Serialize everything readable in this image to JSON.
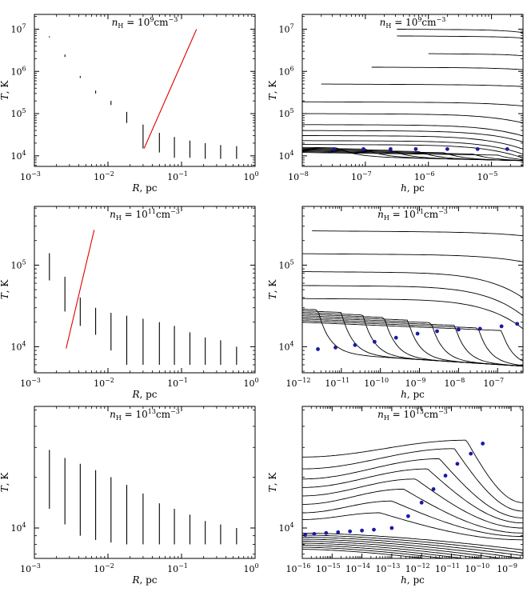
{
  "chart_data": [
    {
      "id": "p1",
      "type": "line",
      "title_main": "n",
      "title_sub": "H",
      "title_rest": " = 10",
      "title_exp": "9",
      "title_unit": "cm",
      "title_unit_exp": "−3",
      "ylabel_main": "T",
      "ylabel_rest": ", K",
      "xlabel_main": "R",
      "xlabel_rest": ", pc",
      "xlog": [
        -3,
        0
      ],
      "ylog": [
        3.75,
        7.35
      ],
      "xticks": [
        {
          "e": -3,
          "label": "10",
          "exp": "−3"
        },
        {
          "e": -2,
          "label": "10",
          "exp": "−2"
        },
        {
          "e": -1,
          "label": "10",
          "exp": "−1"
        },
        {
          "e": 0,
          "label": "10",
          "exp": "0"
        }
      ],
      "yticks": [
        {
          "e": 4,
          "label": "10",
          "exp": "4"
        },
        {
          "e": 5,
          "label": "10",
          "exp": "5"
        },
        {
          "e": 6,
          "label": "10",
          "exp": "6"
        },
        {
          "e": 7,
          "label": "10",
          "exp": "7"
        }
      ],
      "vbars": [
        [
          0.0016,
          6400000.0,
          6800000.0
        ],
        [
          0.0026,
          2200000.0,
          2500000.0
        ],
        [
          0.0042,
          700000.0,
          780000.0
        ],
        [
          0.0068,
          300000.0,
          350000.0
        ],
        [
          0.011,
          160000.0,
          200000.0
        ],
        [
          0.018,
          60000.0,
          110000.0
        ],
        [
          0.03,
          15000.0,
          55000.0
        ],
        [
          0.05,
          12000.0,
          35000.0
        ],
        [
          0.08,
          9000.0,
          28000.0
        ],
        [
          0.13,
          9000.0,
          23000.0
        ],
        [
          0.21,
          8500.0,
          20000.0
        ],
        [
          0.34,
          8500.0,
          18000.0
        ],
        [
          0.56,
          8500.0,
          17000.0
        ]
      ],
      "redline": [
        [
          0.031,
          15000.0
        ],
        [
          0.16,
          10000000.0
        ]
      ]
    },
    {
      "id": "p2",
      "type": "line",
      "title_main": "n",
      "title_sub": "H",
      "title_rest": " = 10",
      "title_exp": "9",
      "title_unit": "cm",
      "title_unit_exp": "−3",
      "ylabel_main": "T",
      "ylabel_rest": ", K",
      "xlabel_main": "h",
      "xlabel_rest": ", pc",
      "xlog": [
        -8,
        -4.5
      ],
      "ylog": [
        3.75,
        7.35
      ],
      "xticks": [
        {
          "e": -8,
          "label": "10",
          "exp": "−8"
        },
        {
          "e": -7,
          "label": "10",
          "exp": "−7"
        },
        {
          "e": -6,
          "label": "10",
          "exp": "−6"
        },
        {
          "e": -5,
          "label": "10",
          "exp": "−5"
        }
      ],
      "yticks": [
        {
          "e": 4,
          "label": "10",
          "exp": "4"
        },
        {
          "e": 5,
          "label": "10",
          "exp": "5"
        },
        {
          "e": 6,
          "label": "10",
          "exp": "6"
        },
        {
          "e": 7,
          "label": "10",
          "exp": "7"
        }
      ],
      "curves": [
        {
          "x0": -6.5,
          "y0": 7.0,
          "drop": 0.06
        },
        {
          "x0": -6.5,
          "y0": 6.84,
          "drop": 0.03
        },
        {
          "x0": -6.0,
          "y0": 6.42,
          "drop": 0.03
        },
        {
          "x0": -6.9,
          "y0": 6.1,
          "drop": 0.04
        },
        {
          "x0": -7.7,
          "y0": 5.7,
          "drop": 0.04
        },
        {
          "x0": -8.0,
          "y0": 5.28,
          "drop": 0.08
        },
        {
          "x0": -8.0,
          "y0": 5.0,
          "drop": 0.2
        },
        {
          "x0": -8.0,
          "y0": 4.74,
          "drop": 0.25
        },
        {
          "x0": -8.0,
          "y0": 4.6,
          "drop": 0.25
        },
        {
          "x0": -8.0,
          "y0": 4.48,
          "drop": 0.3
        },
        {
          "x0": -8.0,
          "y0": 4.36,
          "drop": 0.3
        },
        {
          "x0": -8.0,
          "y0": 4.27,
          "drop": 0.3
        }
      ],
      "stepcurves": {
        "x0": -8.0,
        "y0": 4.2,
        "knees": [
          -7.45,
          -7.0,
          -6.6,
          -6.15,
          -5.75,
          -5.3,
          -4.9
        ],
        "floor": 3.9
      },
      "dots": [
        [
          -7.5,
          4.16
        ],
        [
          -7.03,
          4.16
        ],
        [
          -6.6,
          4.16
        ],
        [
          -6.2,
          4.16
        ],
        [
          -5.7,
          4.16
        ],
        [
          -5.22,
          4.16
        ],
        [
          -4.75,
          4.16
        ]
      ]
    },
    {
      "id": "p3",
      "type": "line",
      "title_main": "n",
      "title_sub": "H",
      "title_rest": " = 10",
      "title_exp": "11",
      "title_unit": "cm",
      "title_unit_exp": "−3",
      "ylabel_main": "T",
      "ylabel_rest": ", K",
      "xlabel_main": "R",
      "xlabel_rest": ", pc",
      "xlog": [
        -3,
        0
      ],
      "ylog": [
        3.68,
        5.72
      ],
      "xticks": [
        {
          "e": -3,
          "label": "10",
          "exp": "−3"
        },
        {
          "e": -2,
          "label": "10",
          "exp": "−2"
        },
        {
          "e": -1,
          "label": "10",
          "exp": "−1"
        },
        {
          "e": 0,
          "label": "10",
          "exp": "0"
        }
      ],
      "yticks": [
        {
          "e": 4,
          "label": "10",
          "exp": "4"
        },
        {
          "e": 5,
          "label": "10",
          "exp": "5"
        }
      ],
      "vbars": [
        [
          0.0016,
          65000.0,
          140000.0
        ],
        [
          0.0026,
          27000.0,
          72000.0
        ],
        [
          0.0042,
          18000.0,
          40000.0
        ],
        [
          0.0068,
          14000.0,
          30000.0
        ],
        [
          0.011,
          9000.0,
          26000.0
        ],
        [
          0.018,
          6000.0,
          24000.0
        ],
        [
          0.03,
          6000.0,
          22000.0
        ],
        [
          0.05,
          6000.0,
          20000.0
        ],
        [
          0.08,
          6000.0,
          18000.0
        ],
        [
          0.13,
          6000.0,
          15000.0
        ],
        [
          0.21,
          6000.0,
          13000.0
        ],
        [
          0.34,
          6000.0,
          12000.0
        ],
        [
          0.56,
          6000.0,
          10000.0
        ]
      ],
      "redline": [
        [
          0.0027,
          9500.0
        ],
        [
          0.0065,
          270000.0
        ]
      ]
    },
    {
      "id": "p4",
      "type": "line",
      "title_main": "n",
      "title_sub": "H",
      "title_rest": " = 10",
      "title_exp": "11",
      "title_unit": "cm",
      "title_unit_exp": "−3",
      "ylabel_main": "T",
      "ylabel_rest": ", K",
      "xlabel_main": "h",
      "xlabel_rest": ", pc",
      "xlog": [
        -12,
        -6.35
      ],
      "ylog": [
        3.68,
        5.72
      ],
      "xticks": [
        {
          "e": -12,
          "label": "10",
          "exp": "−12"
        },
        {
          "e": -11,
          "label": "10",
          "exp": "−11"
        },
        {
          "e": -10,
          "label": "10",
          "exp": "−10"
        },
        {
          "e": -9,
          "label": "10",
          "exp": "−9"
        },
        {
          "e": -8,
          "label": "10",
          "exp": "−8"
        },
        {
          "e": -7,
          "label": "10",
          "exp": "−7"
        }
      ],
      "yticks": [
        {
          "e": 4,
          "label": "10",
          "exp": "4"
        },
        {
          "e": 5,
          "label": "10",
          "exp": "5"
        }
      ],
      "curves": [
        {
          "x0": -11.75,
          "y0": 5.42,
          "drop": 0.04
        },
        {
          "x0": -12.0,
          "y0": 5.14,
          "drop": 0.08
        },
        {
          "x0": -12.0,
          "y0": 4.92,
          "drop": 0.3
        },
        {
          "x0": -12.0,
          "y0": 4.75,
          "drop": 0.35
        },
        {
          "x0": -12.0,
          "y0": 4.59,
          "drop": 0.35
        }
      ],
      "stepcurves": {
        "x0": -12.0,
        "y0": 4.46,
        "knees": [
          -11.6,
          -11.0,
          -10.45,
          -9.9,
          -9.3,
          -8.7,
          -8.1,
          -7.5,
          -6.9
        ],
        "floor": 3.7
      },
      "dots": [
        [
          -11.6,
          3.97
        ],
        [
          -11.15,
          3.99
        ],
        [
          -10.65,
          4.02
        ],
        [
          -10.15,
          4.06
        ],
        [
          -9.6,
          4.11
        ],
        [
          -9.05,
          4.16
        ],
        [
          -8.55,
          4.19
        ],
        [
          -8.0,
          4.21
        ],
        [
          -7.45,
          4.22
        ],
        [
          -6.9,
          4.25
        ],
        [
          -6.5,
          4.28
        ]
      ]
    },
    {
      "id": "p5",
      "type": "line",
      "title_main": "n",
      "title_sub": "H",
      "title_rest": " = 10",
      "title_exp": "13",
      "title_unit": "cm",
      "title_unit_exp": "−3",
      "ylabel_main": "T",
      "ylabel_rest": ", K",
      "xlabel_main": "R",
      "xlabel_rest": ", pc",
      "xlog": [
        -3,
        0
      ],
      "ylog": [
        3.82,
        4.72
      ],
      "xticks": [
        {
          "e": -3,
          "label": "10",
          "exp": "−3"
        },
        {
          "e": -2,
          "label": "10",
          "exp": "−2"
        },
        {
          "e": -1,
          "label": "10",
          "exp": "−1"
        },
        {
          "e": 0,
          "label": "10",
          "exp": "0"
        }
      ],
      "yticks": [
        {
          "e": 4,
          "label": "10",
          "exp": "4"
        }
      ],
      "vbars": [
        [
          0.0016,
          13000.0,
          29000.0
        ],
        [
          0.0026,
          10500.0,
          26000.0
        ],
        [
          0.0042,
          9000.0,
          24000.0
        ],
        [
          0.0068,
          8500.0,
          22000.0
        ],
        [
          0.011,
          8200.0,
          20000.0
        ],
        [
          0.018,
          8000.0,
          18000.0
        ],
        [
          0.03,
          8000.0,
          16000.0
        ],
        [
          0.05,
          8000.0,
          14000.0
        ],
        [
          0.08,
          8000.0,
          13000.0
        ],
        [
          0.13,
          8000.0,
          12000.0
        ],
        [
          0.21,
          8000.0,
          11000.0
        ],
        [
          0.34,
          8000.0,
          10500.0
        ],
        [
          0.56,
          8000.0,
          10000.0
        ]
      ],
      "redline": null
    },
    {
      "id": "p6",
      "type": "line",
      "title_main": "n",
      "title_sub": "H",
      "title_rest": " = 10",
      "title_exp": "13",
      "title_unit": "cm",
      "title_unit_exp": "−3",
      "ylabel_main": "T",
      "ylabel_rest": ", K",
      "xlabel_main": "h",
      "xlabel_rest": ", pc",
      "xlog": [
        -16,
        -8.6
      ],
      "ylog": [
        3.82,
        4.72
      ],
      "xticks": [
        {
          "e": -16,
          "label": "10",
          "exp": "−16"
        },
        {
          "e": -15,
          "label": "10",
          "exp": "−15"
        },
        {
          "e": -14,
          "label": "10",
          "exp": "−14"
        },
        {
          "e": -13,
          "label": "10",
          "exp": "−13"
        },
        {
          "e": -12,
          "label": "10",
          "exp": "−12"
        },
        {
          "e": -11,
          "label": "10",
          "exp": "−11"
        },
        {
          "e": -10,
          "label": "10",
          "exp": "−10"
        },
        {
          "e": -9,
          "label": "10",
          "exp": "−9"
        }
      ],
      "yticks": [
        {
          "e": 4,
          "label": "10",
          "exp": "4"
        }
      ],
      "humps": [
        {
          "y0": 4.42,
          "peak": 4.52,
          "px": -10.5,
          "end": 4.15
        },
        {
          "y0": 4.35,
          "peak": 4.47,
          "px": -10.9,
          "end": 4.1
        },
        {
          "y0": 4.29,
          "peak": 4.41,
          "px": -11.4,
          "end": 4.06
        },
        {
          "y0": 4.24,
          "peak": 4.35,
          "px": -11.8,
          "end": 4.03
        },
        {
          "y0": 4.19,
          "peak": 4.29,
          "px": -12.2,
          "end": 4.0
        },
        {
          "y0": 4.14,
          "peak": 4.23,
          "px": -12.6,
          "end": 3.97
        },
        {
          "y0": 4.09,
          "peak": 4.16,
          "px": -13.0,
          "end": 3.95
        },
        {
          "y0": 4.05,
          "peak": 4.09,
          "px": -13.4,
          "end": 3.93
        }
      ],
      "flat": {
        "y0": 3.97,
        "n": 9,
        "step": 0.012
      },
      "dots": [
        [
          -15.9,
          3.96
        ],
        [
          -15.6,
          3.965
        ],
        [
          -15.2,
          3.97
        ],
        [
          -14.8,
          3.975
        ],
        [
          -14.4,
          3.98
        ],
        [
          -14.0,
          3.985
        ],
        [
          -13.6,
          3.99
        ],
        [
          -13.0,
          4.0
        ],
        [
          -12.45,
          4.07
        ],
        [
          -12.0,
          4.15
        ],
        [
          -11.6,
          4.23
        ],
        [
          -11.2,
          4.31
        ],
        [
          -10.8,
          4.38
        ],
        [
          -10.35,
          4.44
        ],
        [
          -9.95,
          4.5
        ]
      ]
    }
  ]
}
